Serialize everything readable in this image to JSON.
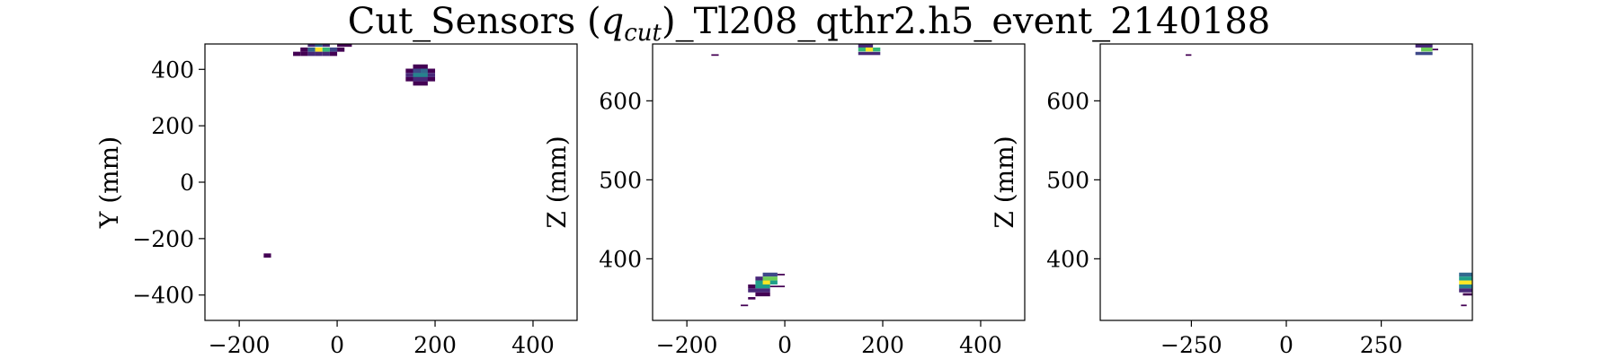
{
  "figure": {
    "title": "Cut_Sensors (q_cut)_Tl208_qthr2.h5_event_2140188",
    "title_prefix": "Cut_Sensors (",
    "title_q": "q",
    "title_sub": "cut",
    "title_suffix": ")_Tl208_qthr2.h5_event_2140188"
  },
  "chart_data": [
    {
      "type": "heatmap",
      "panel": "XY",
      "xlabel": "",
      "ylabel": "Y (mm)",
      "xlim": [
        -270,
        490
      ],
      "ylim": [
        -490,
        490
      ],
      "xticks": [
        -200,
        0,
        200,
        400
      ],
      "yticks": [
        -400,
        -200,
        0,
        200,
        400
      ],
      "colormap": "viridis",
      "grid": false,
      "cells": [
        {
          "x": -45,
          "y": 470,
          "w": 15,
          "h": 15,
          "v": 0.9
        },
        {
          "x": -30,
          "y": 470,
          "w": 15,
          "h": 15,
          "v": 0.6
        },
        {
          "x": -60,
          "y": 470,
          "w": 15,
          "h": 15,
          "v": 0.35
        },
        {
          "x": -15,
          "y": 470,
          "w": 15,
          "h": 15,
          "v": 0.25
        },
        {
          "x": -75,
          "y": 470,
          "w": 15,
          "h": 15,
          "v": 0.05
        },
        {
          "x": 0,
          "y": 470,
          "w": 15,
          "h": 15,
          "v": 0.05
        },
        {
          "x": -45,
          "y": 485,
          "w": 15,
          "h": 10,
          "v": 0.3
        },
        {
          "x": -60,
          "y": 485,
          "w": 15,
          "h": 10,
          "v": 0.15
        },
        {
          "x": -30,
          "y": 485,
          "w": 15,
          "h": 10,
          "v": 0.15
        },
        {
          "x": 0,
          "y": 485,
          "w": 30,
          "h": 10,
          "v": 0.05
        },
        {
          "x": -90,
          "y": 455,
          "w": 15,
          "h": 15,
          "v": 0.05
        },
        {
          "x": -75,
          "y": 455,
          "w": 15,
          "h": 15,
          "v": 0.05
        },
        {
          "x": -60,
          "y": 455,
          "w": 15,
          "h": 15,
          "v": 0.1
        },
        {
          "x": -45,
          "y": 455,
          "w": 15,
          "h": 15,
          "v": 0.15
        },
        {
          "x": -30,
          "y": 455,
          "w": 15,
          "h": 15,
          "v": 0.1
        },
        {
          "x": -15,
          "y": 455,
          "w": 15,
          "h": 15,
          "v": 0.05
        },
        {
          "x": 155,
          "y": 410,
          "w": 30,
          "h": 15,
          "v": 0.05
        },
        {
          "x": 140,
          "y": 395,
          "w": 60,
          "h": 15,
          "v": 0.08
        },
        {
          "x": 155,
          "y": 395,
          "w": 15,
          "h": 15,
          "v": 0.2
        },
        {
          "x": 170,
          "y": 395,
          "w": 15,
          "h": 15,
          "v": 0.3
        },
        {
          "x": 140,
          "y": 380,
          "w": 60,
          "h": 15,
          "v": 0.1
        },
        {
          "x": 155,
          "y": 380,
          "w": 30,
          "h": 15,
          "v": 0.45
        },
        {
          "x": 140,
          "y": 365,
          "w": 60,
          "h": 15,
          "v": 0.05
        },
        {
          "x": 155,
          "y": 365,
          "w": 30,
          "h": 15,
          "v": 0.15
        },
        {
          "x": 155,
          "y": 350,
          "w": 30,
          "h": 15,
          "v": 0.03
        },
        {
          "x": -150,
          "y": -260,
          "w": 15,
          "h": 15,
          "v": 0.05
        }
      ]
    },
    {
      "type": "heatmap",
      "panel": "XZ",
      "xlabel": "",
      "ylabel": "Z (mm)",
      "xlim": [
        -270,
        490
      ],
      "ylim": [
        322,
        672
      ],
      "xticks": [
        -200,
        0,
        200,
        400
      ],
      "yticks": [
        400,
        500,
        600
      ],
      "colormap": "viridis",
      "grid": false,
      "cells": [
        {
          "x": 150,
          "y": 670,
          "w": 30,
          "h": 5,
          "v": 0.15
        },
        {
          "x": 150,
          "y": 665,
          "w": 45,
          "h": 5,
          "v": 0.6
        },
        {
          "x": 165,
          "y": 665,
          "w": 15,
          "h": 5,
          "v": 0.9
        },
        {
          "x": 150,
          "y": 660,
          "w": 45,
          "h": 4,
          "v": 0.15
        },
        {
          "x": -150,
          "y": 658,
          "w": 15,
          "h": 2,
          "v": 0.05
        },
        {
          "x": -45,
          "y": 380,
          "w": 30,
          "h": 5,
          "v": 0.2
        },
        {
          "x": -15,
          "y": 380,
          "w": 15,
          "h": 2,
          "v": 0.05
        },
        {
          "x": -45,
          "y": 375,
          "w": 30,
          "h": 5,
          "v": 0.7
        },
        {
          "x": -60,
          "y": 375,
          "w": 15,
          "h": 5,
          "v": 0.1
        },
        {
          "x": -60,
          "y": 370,
          "w": 45,
          "h": 5,
          "v": 0.5
        },
        {
          "x": -45,
          "y": 370,
          "w": 15,
          "h": 5,
          "v": 0.9
        },
        {
          "x": -75,
          "y": 365,
          "w": 15,
          "h": 5,
          "v": 0.05
        },
        {
          "x": -60,
          "y": 365,
          "w": 30,
          "h": 5,
          "v": 0.55
        },
        {
          "x": -30,
          "y": 365,
          "w": 30,
          "h": 2,
          "v": 0.05
        },
        {
          "x": -75,
          "y": 360,
          "w": 45,
          "h": 5,
          "v": 0.12
        },
        {
          "x": -60,
          "y": 355,
          "w": 30,
          "h": 5,
          "v": 0.08
        },
        {
          "x": -75,
          "y": 350,
          "w": 15,
          "h": 3,
          "v": 0.05
        },
        {
          "x": -90,
          "y": 341,
          "w": 15,
          "h": 2,
          "v": 0.05
        }
      ]
    },
    {
      "type": "heatmap",
      "panel": "YZ",
      "xlabel": "",
      "ylabel": "Z (mm)",
      "xlim": [
        -490,
        490
      ],
      "ylim": [
        322,
        672
      ],
      "xticks": [
        -250,
        0,
        250
      ],
      "yticks": [
        400,
        500,
        600
      ],
      "colormap": "viridis",
      "grid": false,
      "cells": [
        {
          "x": 340,
          "y": 670,
          "w": 45,
          "h": 5,
          "v": 0.15
        },
        {
          "x": 355,
          "y": 665,
          "w": 30,
          "h": 5,
          "v": 0.75
        },
        {
          "x": 385,
          "y": 665,
          "w": 15,
          "h": 2,
          "v": 0.05
        },
        {
          "x": 340,
          "y": 660,
          "w": 45,
          "h": 4,
          "v": 0.2
        },
        {
          "x": -265,
          "y": 658,
          "w": 15,
          "h": 2,
          "v": 0.05
        },
        {
          "x": 455,
          "y": 380,
          "w": 35,
          "h": 5,
          "v": 0.3
        },
        {
          "x": 455,
          "y": 375,
          "w": 35,
          "h": 5,
          "v": 0.55
        },
        {
          "x": 455,
          "y": 370,
          "w": 35,
          "h": 5,
          "v": 0.9
        },
        {
          "x": 455,
          "y": 365,
          "w": 35,
          "h": 5,
          "v": 0.45
        },
        {
          "x": 455,
          "y": 360,
          "w": 35,
          "h": 5,
          "v": 0.15
        },
        {
          "x": 465,
          "y": 355,
          "w": 25,
          "h": 3,
          "v": 0.05
        },
        {
          "x": 460,
          "y": 341,
          "w": 15,
          "h": 2,
          "v": 0.05
        }
      ]
    }
  ]
}
